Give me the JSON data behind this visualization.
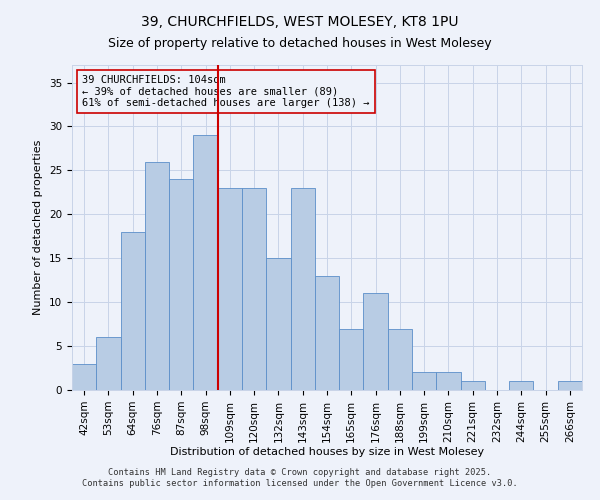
{
  "title1": "39, CHURCHFIELDS, WEST MOLESEY, KT8 1PU",
  "title2": "Size of property relative to detached houses in West Molesey",
  "xlabel": "Distribution of detached houses by size in West Molesey",
  "ylabel": "Number of detached properties",
  "categories": [
    "42sqm",
    "53sqm",
    "64sqm",
    "76sqm",
    "87sqm",
    "98sqm",
    "109sqm",
    "120sqm",
    "132sqm",
    "143sqm",
    "154sqm",
    "165sqm",
    "176sqm",
    "188sqm",
    "199sqm",
    "210sqm",
    "221sqm",
    "232sqm",
    "244sqm",
    "255sqm",
    "266sqm"
  ],
  "values": [
    3,
    6,
    18,
    26,
    24,
    29,
    23,
    23,
    15,
    23,
    13,
    7,
    11,
    7,
    2,
    2,
    1,
    0,
    1,
    0,
    1
  ],
  "bar_color": "#b8cce4",
  "bar_edge_color": "#5b8fc9",
  "marker_bin_index": 5,
  "marker_line_color": "#cc0000",
  "annotation_text": "39 CHURCHFIELDS: 104sqm\n← 39% of detached houses are smaller (89)\n61% of semi-detached houses are larger (138) →",
  "annotation_box_edge_color": "#cc0000",
  "ylim": [
    0,
    37
  ],
  "yticks": [
    0,
    5,
    10,
    15,
    20,
    25,
    30,
    35
  ],
  "grid_color": "#c8d4e8",
  "background_color": "#eef2fa",
  "footnote1": "Contains HM Land Registry data © Crown copyright and database right 2025.",
  "footnote2": "Contains public sector information licensed under the Open Government Licence v3.0.",
  "title_fontsize": 10,
  "subtitle_fontsize": 9,
  "axis_label_fontsize": 8,
  "tick_fontsize": 7.5,
  "annotation_fontsize": 7.5
}
